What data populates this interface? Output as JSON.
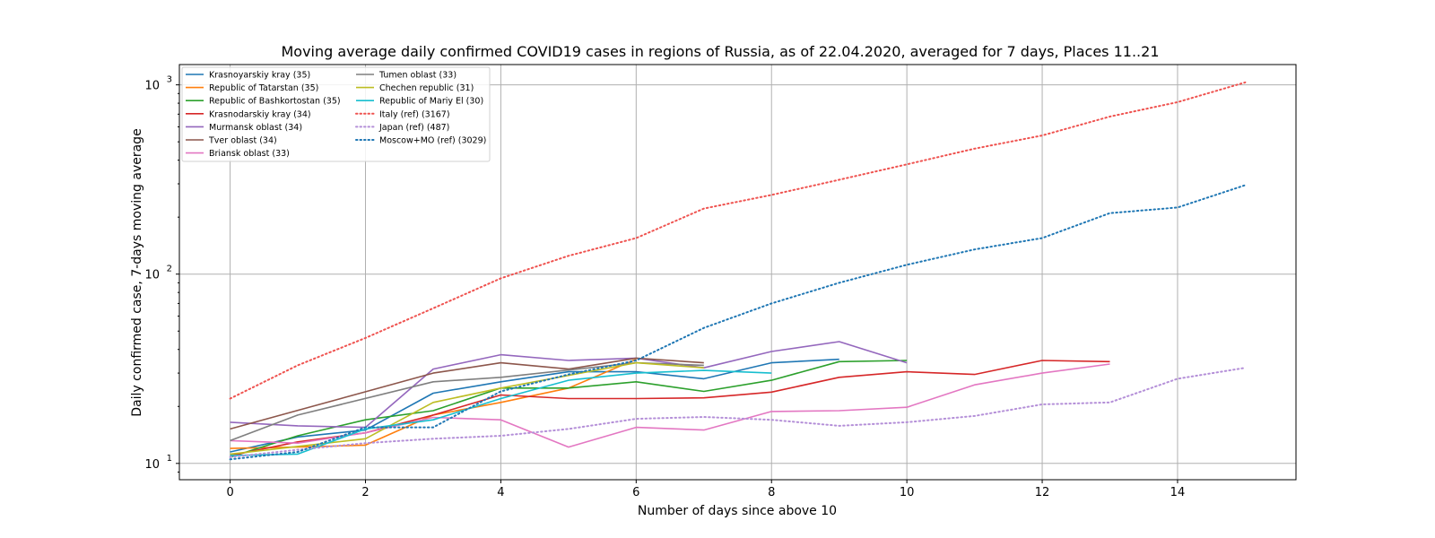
{
  "chart_data": {
    "type": "line",
    "title": "Moving average daily confirmed COVID19 cases in regions of Russia, as of 22.04.2020, averaged for 7 days, Places 11..21",
    "xlabel": "Number of days since above 10",
    "ylabel": "Daily confirmed case, 7-days moving average",
    "yscale": "log",
    "xlim": [
      -0.75,
      15.75
    ],
    "ylim": [
      8.2,
      1280
    ],
    "grid": true,
    "legend_position": "top-left",
    "x_ticks": [
      0,
      2,
      4,
      6,
      8,
      10,
      12,
      14
    ],
    "y_ticks": [
      {
        "value": 10,
        "base": "10",
        "exp": "1"
      },
      {
        "value": 100,
        "base": "10",
        "exp": "2"
      },
      {
        "value": 1000,
        "base": "10",
        "exp": "3"
      }
    ],
    "series": [
      {
        "name": "Krasnoyarskiy kray (35)",
        "color": "#1f77b4",
        "style": "solid",
        "x": [
          0,
          1,
          2,
          3,
          4,
          5,
          6,
          7,
          8,
          9
        ],
        "values": [
          11.5,
          13.8,
          15.0,
          23.5,
          27.0,
          30.5,
          30.5,
          28.0,
          34.0,
          35.5
        ]
      },
      {
        "name": "Republic of Tatarstan (35)",
        "color": "#ff7f0e",
        "style": "solid",
        "x": [
          0,
          1,
          2,
          3,
          4,
          5,
          6
        ],
        "values": [
          12.0,
          12.2,
          12.5,
          18.0,
          21.0,
          25.0,
          35.5
        ]
      },
      {
        "name": "Republic of Bashkortostan (35)",
        "color": "#2ca02c",
        "style": "solid",
        "x": [
          0,
          1,
          2,
          3,
          4,
          5,
          6,
          7,
          8,
          9,
          10
        ],
        "values": [
          10.8,
          14.0,
          17.0,
          19.0,
          25.0,
          25.0,
          27.0,
          24.0,
          27.5,
          34.5,
          35.0
        ]
      },
      {
        "name": "Krasnodarskiy kray (34)",
        "color": "#d62728",
        "style": "solid",
        "x": [
          0,
          1,
          2,
          3,
          4,
          5,
          6,
          7,
          8,
          9,
          10,
          11,
          12,
          13
        ],
        "values": [
          11.0,
          13.0,
          14.5,
          18.0,
          23.0,
          22.0,
          22.0,
          22.2,
          23.8,
          28.5,
          30.5,
          29.5,
          35.0,
          34.5
        ]
      },
      {
        "name": "Murmansk oblast (34)",
        "color": "#9467bd",
        "style": "solid",
        "x": [
          0,
          1,
          2,
          3,
          4,
          5,
          6,
          7,
          8,
          9,
          10
        ],
        "values": [
          16.5,
          15.8,
          15.5,
          31.5,
          37.5,
          35.0,
          36.0,
          32.0,
          39.0,
          44.0,
          34.0
        ]
      },
      {
        "name": "Tver oblast (34)",
        "color": "#8c564b",
        "style": "solid",
        "x": [
          0,
          3,
          4,
          5,
          6,
          7
        ],
        "values": [
          15.2,
          30.0,
          34.0,
          31.5,
          36.0,
          34.0
        ]
      },
      {
        "name": "Briansk oblast (33)",
        "color": "#e377c2",
        "style": "solid",
        "x": [
          0,
          1,
          2,
          3,
          4,
          5,
          6,
          7,
          8,
          9,
          10,
          11,
          12,
          13
        ],
        "values": [
          13.2,
          12.8,
          14.5,
          17.5,
          17.0,
          12.2,
          15.5,
          15.0,
          18.8,
          19.0,
          19.8,
          26.0,
          30.0,
          33.5
        ]
      },
      {
        "name": "Tumen oblast (33)",
        "color": "#7f7f7f",
        "style": "solid",
        "x": [
          0,
          1,
          3,
          4,
          6,
          7
        ],
        "values": [
          13.2,
          18.0,
          27.0,
          28.5,
          34.0,
          33.0
        ]
      },
      {
        "name": "Chechen republic (31)",
        "color": "#bcbd22",
        "style": "solid",
        "x": [
          0,
          2,
          3,
          4,
          6,
          7
        ],
        "values": [
          11.2,
          13.5,
          21.0,
          25.0,
          34.0,
          32.0
        ]
      },
      {
        "name": "Republic of Mariy El (30)",
        "color": "#17becf",
        "style": "solid",
        "x": [
          0,
          1,
          2,
          3,
          4,
          5,
          6,
          7,
          8
        ],
        "values": [
          11.0,
          11.2,
          15.2,
          17.0,
          22.0,
          27.5,
          30.0,
          31.0,
          30.0
        ]
      },
      {
        "name": "Italy (ref) (3167)",
        "color": "#ef5350",
        "style": "dotted",
        "x": [
          0,
          1,
          2,
          3,
          4,
          5,
          6,
          7,
          8,
          9,
          10,
          11,
          12,
          13,
          14,
          15
        ],
        "values": [
          22,
          33,
          46,
          66,
          95,
          125,
          155,
          222,
          262,
          315,
          380,
          460,
          540,
          680,
          810,
          1030
        ]
      },
      {
        "name": "Japan (ref) (487)",
        "color": "#b48fd8",
        "style": "dotted",
        "x": [
          0,
          1,
          2,
          3,
          4,
          5,
          6,
          7,
          8,
          9,
          10,
          11,
          12,
          13,
          14,
          15
        ],
        "values": [
          10.8,
          11.8,
          12.8,
          13.5,
          14.0,
          15.2,
          17.2,
          17.6,
          17.0,
          15.8,
          16.5,
          17.8,
          20.5,
          21.0,
          28.0,
          32.0
        ]
      },
      {
        "name": "Moscow+MO (ref) (3029)",
        "color": "#1f77b4",
        "style": "dotted",
        "x": [
          0,
          1,
          2,
          3,
          4,
          5,
          6,
          7,
          8,
          9,
          10,
          11,
          12,
          13,
          14,
          15
        ],
        "values": [
          10.5,
          11.5,
          15.5,
          15.5,
          24.0,
          29.5,
          35.0,
          52,
          70,
          90,
          112,
          135,
          155,
          210,
          225,
          295
        ]
      }
    ]
  }
}
